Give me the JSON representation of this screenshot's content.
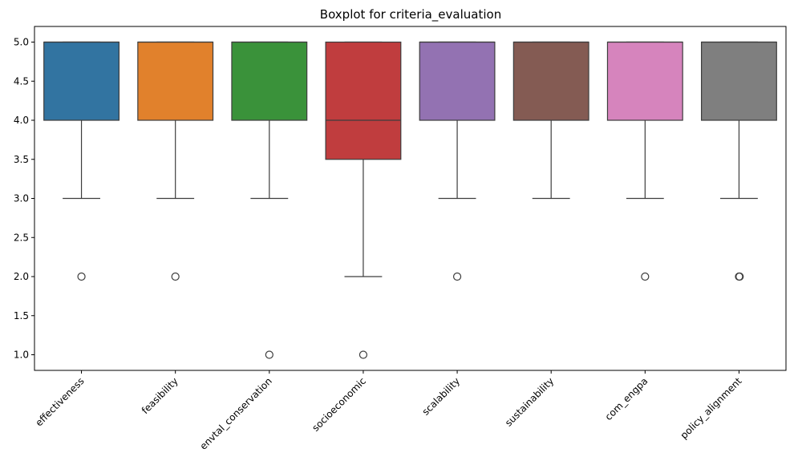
{
  "chart_data": {
    "type": "box",
    "title": "Boxplot for criteria_evaluation",
    "xlabel": "",
    "ylabel": "",
    "ylim": [
      0.8,
      5.2
    ],
    "yticks": [
      1.0,
      1.5,
      2.0,
      2.5,
      3.0,
      3.5,
      4.0,
      4.5,
      5.0
    ],
    "ytick_labels": [
      "1.0",
      "1.5",
      "2.0",
      "2.5",
      "3.0",
      "3.5",
      "4.0",
      "4.5",
      "5.0"
    ],
    "grid": false,
    "categories": [
      "effectiveness",
      "feasibility",
      "envtal_conservation",
      "socioeconomic",
      "scalability",
      "sustainability",
      "com_engpa",
      "policy_alignment"
    ],
    "series": [
      {
        "category": "effectiveness",
        "color": "#3274a1",
        "whisker_low": 3.0,
        "q1": 4.0,
        "median": 5.0,
        "q3": 5.0,
        "whisker_high": 5.0,
        "outliers": [
          2.0
        ]
      },
      {
        "category": "feasibility",
        "color": "#e1812c",
        "whisker_low": 3.0,
        "q1": 4.0,
        "median": 5.0,
        "q3": 5.0,
        "whisker_high": 5.0,
        "outliers": [
          2.0
        ]
      },
      {
        "category": "envtal_conservation",
        "color": "#3a923a",
        "whisker_low": 3.0,
        "q1": 4.0,
        "median": 5.0,
        "q3": 5.0,
        "whisker_high": 5.0,
        "outliers": [
          1.0
        ]
      },
      {
        "category": "socioeconomic",
        "color": "#c03d3e",
        "whisker_low": 2.0,
        "q1": 3.5,
        "median": 4.0,
        "q3": 5.0,
        "whisker_high": 5.0,
        "outliers": [
          1.0
        ]
      },
      {
        "category": "scalability",
        "color": "#9372b2",
        "whisker_low": 3.0,
        "q1": 4.0,
        "median": 5.0,
        "q3": 5.0,
        "whisker_high": 5.0,
        "outliers": [
          2.0
        ]
      },
      {
        "category": "sustainability",
        "color": "#845b53",
        "whisker_low": 3.0,
        "q1": 4.0,
        "median": 5.0,
        "q3": 5.0,
        "whisker_high": 5.0,
        "outliers": []
      },
      {
        "category": "com_engpa",
        "color": "#d684bd",
        "whisker_low": 3.0,
        "q1": 4.0,
        "median": 5.0,
        "q3": 5.0,
        "whisker_high": 5.0,
        "outliers": [
          2.0
        ]
      },
      {
        "category": "policy_alignment",
        "color": "#7f7f7f",
        "whisker_low": 3.0,
        "q1": 4.0,
        "median": 5.0,
        "q3": 5.0,
        "whisker_high": 5.0,
        "outliers": [
          2.0,
          2.0
        ]
      }
    ]
  }
}
